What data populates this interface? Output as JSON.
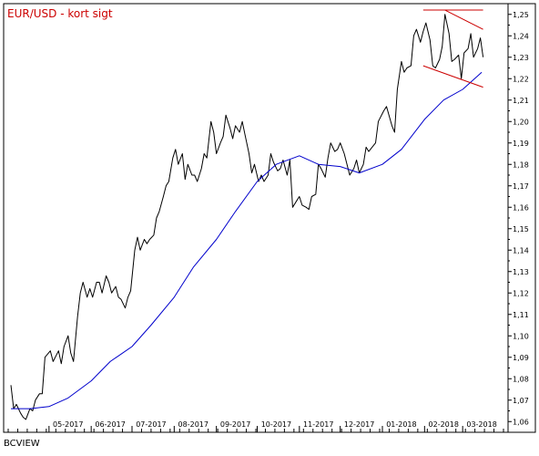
{
  "chart_data": {
    "type": "line",
    "title": "EUR/USD - kort sigt",
    "title_color": "#cc0000",
    "footer": "BCVIEW",
    "x_tick_labels": [
      "05-2017",
      "06-2017",
      "07-2017",
      "08-2017",
      "09-2017",
      "10-2017",
      "11-2017",
      "12-2017",
      "01-2018",
      "02-2018",
      "03-2018"
    ],
    "y_tick_labels": [
      "1,06",
      "1,07",
      "1,08",
      "1,09",
      "1,10",
      "1,11",
      "1,12",
      "1,13",
      "1,14",
      "1,15",
      "1,16",
      "1,17",
      "1,18",
      "1,19",
      "1,20",
      "1,21",
      "1,22",
      "1,23",
      "1,24",
      "1,25"
    ],
    "ylim": [
      1.055,
      1.255
    ],
    "xlim": [
      "2017-04-01",
      "2018-03-31"
    ],
    "grid": false,
    "legend": "none",
    "series": [
      {
        "color": "#000000",
        "points": [
          [
            "2017-04-03",
            1.077
          ],
          [
            "2017-04-05",
            1.066
          ],
          [
            "2017-04-07",
            1.068
          ],
          [
            "2017-04-10",
            1.064
          ],
          [
            "2017-04-12",
            1.062
          ],
          [
            "2017-04-14",
            1.061
          ],
          [
            "2017-04-17",
            1.066
          ],
          [
            "2017-04-19",
            1.065
          ],
          [
            "2017-04-21",
            1.07
          ],
          [
            "2017-04-24",
            1.073
          ],
          [
            "2017-04-26",
            1.073
          ],
          [
            "2017-04-28",
            1.09
          ],
          [
            "2017-05-02",
            1.093
          ],
          [
            "2017-05-04",
            1.088
          ],
          [
            "2017-05-08",
            1.093
          ],
          [
            "2017-05-10",
            1.087
          ],
          [
            "2017-05-12",
            1.095
          ],
          [
            "2017-05-15",
            1.1
          ],
          [
            "2017-05-17",
            1.092
          ],
          [
            "2017-05-19",
            1.088
          ],
          [
            "2017-05-22",
            1.109
          ],
          [
            "2017-05-24",
            1.12
          ],
          [
            "2017-05-26",
            1.125
          ],
          [
            "2017-05-29",
            1.118
          ],
          [
            "2017-05-31",
            1.122
          ],
          [
            "2017-06-02",
            1.118
          ],
          [
            "2017-06-05",
            1.125
          ],
          [
            "2017-06-07",
            1.125
          ],
          [
            "2017-06-09",
            1.12
          ],
          [
            "2017-06-12",
            1.128
          ],
          [
            "2017-06-14",
            1.125
          ],
          [
            "2017-06-16",
            1.12
          ],
          [
            "2017-06-19",
            1.123
          ],
          [
            "2017-06-21",
            1.118
          ],
          [
            "2017-06-23",
            1.117
          ],
          [
            "2017-06-26",
            1.113
          ],
          [
            "2017-06-28",
            1.118
          ],
          [
            "2017-06-30",
            1.121
          ],
          [
            "2017-07-03",
            1.14
          ],
          [
            "2017-07-05",
            1.146
          ],
          [
            "2017-07-07",
            1.14
          ],
          [
            "2017-07-10",
            1.145
          ],
          [
            "2017-07-12",
            1.143
          ],
          [
            "2017-07-14",
            1.145
          ],
          [
            "2017-07-17",
            1.147
          ],
          [
            "2017-07-19",
            1.155
          ],
          [
            "2017-07-21",
            1.158
          ],
          [
            "2017-07-24",
            1.165
          ],
          [
            "2017-07-26",
            1.17
          ],
          [
            "2017-07-28",
            1.172
          ],
          [
            "2017-07-31",
            1.183
          ],
          [
            "2017-08-02",
            1.187
          ],
          [
            "2017-08-04",
            1.18
          ],
          [
            "2017-08-07",
            1.185
          ],
          [
            "2017-08-09",
            1.173
          ],
          [
            "2017-08-11",
            1.18
          ],
          [
            "2017-08-14",
            1.175
          ],
          [
            "2017-08-16",
            1.175
          ],
          [
            "2017-08-18",
            1.172
          ],
          [
            "2017-08-21",
            1.178
          ],
          [
            "2017-08-23",
            1.185
          ],
          [
            "2017-08-25",
            1.183
          ],
          [
            "2017-08-28",
            1.2
          ],
          [
            "2017-08-30",
            1.195
          ],
          [
            "2017-09-01",
            1.185
          ],
          [
            "2017-09-04",
            1.19
          ],
          [
            "2017-09-06",
            1.193
          ],
          [
            "2017-09-08",
            1.203
          ],
          [
            "2017-09-11",
            1.197
          ],
          [
            "2017-09-13",
            1.192
          ],
          [
            "2017-09-15",
            1.198
          ],
          [
            "2017-09-18",
            1.195
          ],
          [
            "2017-09-20",
            1.2
          ],
          [
            "2017-09-22",
            1.194
          ],
          [
            "2017-09-25",
            1.185
          ],
          [
            "2017-09-27",
            1.176
          ],
          [
            "2017-09-29",
            1.18
          ],
          [
            "2017-10-02",
            1.172
          ],
          [
            "2017-10-04",
            1.175
          ],
          [
            "2017-10-06",
            1.172
          ],
          [
            "2017-10-09",
            1.175
          ],
          [
            "2017-10-11",
            1.185
          ],
          [
            "2017-10-13",
            1.181
          ],
          [
            "2017-10-16",
            1.177
          ],
          [
            "2017-10-18",
            1.178
          ],
          [
            "2017-10-20",
            1.182
          ],
          [
            "2017-10-23",
            1.175
          ],
          [
            "2017-10-25",
            1.182
          ],
          [
            "2017-10-27",
            1.16
          ],
          [
            "2017-10-30",
            1.163
          ],
          [
            "2017-11-01",
            1.165
          ],
          [
            "2017-11-03",
            1.161
          ],
          [
            "2017-11-06",
            1.16
          ],
          [
            "2017-11-08",
            1.159
          ],
          [
            "2017-11-10",
            1.165
          ],
          [
            "2017-11-13",
            1.166
          ],
          [
            "2017-11-15",
            1.18
          ],
          [
            "2017-11-17",
            1.178
          ],
          [
            "2017-11-20",
            1.174
          ],
          [
            "2017-11-22",
            1.183
          ],
          [
            "2017-11-24",
            1.19
          ],
          [
            "2017-11-27",
            1.186
          ],
          [
            "2017-11-29",
            1.187
          ],
          [
            "2017-12-01",
            1.19
          ],
          [
            "2017-12-04",
            1.185
          ],
          [
            "2017-12-06",
            1.18
          ],
          [
            "2017-12-08",
            1.175
          ],
          [
            "2017-12-11",
            1.178
          ],
          [
            "2017-12-13",
            1.182
          ],
          [
            "2017-12-15",
            1.176
          ],
          [
            "2017-12-18",
            1.18
          ],
          [
            "2017-12-20",
            1.188
          ],
          [
            "2017-12-22",
            1.186
          ],
          [
            "2017-12-27",
            1.19
          ],
          [
            "2017-12-29",
            1.2
          ],
          [
            "2018-01-02",
            1.205
          ],
          [
            "2018-01-04",
            1.207
          ],
          [
            "2018-01-08",
            1.198
          ],
          [
            "2018-01-10",
            1.195
          ],
          [
            "2018-01-12",
            1.215
          ],
          [
            "2018-01-15",
            1.228
          ],
          [
            "2018-01-17",
            1.223
          ],
          [
            "2018-01-19",
            1.225
          ],
          [
            "2018-01-22",
            1.226
          ],
          [
            "2018-01-24",
            1.24
          ],
          [
            "2018-01-26",
            1.243
          ],
          [
            "2018-01-29",
            1.237
          ],
          [
            "2018-01-31",
            1.242
          ],
          [
            "2018-02-02",
            1.246
          ],
          [
            "2018-02-05",
            1.238
          ],
          [
            "2018-02-07",
            1.226
          ],
          [
            "2018-02-09",
            1.225
          ],
          [
            "2018-02-12",
            1.229
          ],
          [
            "2018-02-14",
            1.235
          ],
          [
            "2018-02-16",
            1.25
          ],
          [
            "2018-02-19",
            1.241
          ],
          [
            "2018-02-21",
            1.228
          ],
          [
            "2018-02-23",
            1.229
          ],
          [
            "2018-02-26",
            1.231
          ],
          [
            "2018-02-28",
            1.22
          ],
          [
            "2018-03-02",
            1.232
          ],
          [
            "2018-03-05",
            1.234
          ],
          [
            "2018-03-07",
            1.241
          ],
          [
            "2018-03-09",
            1.23
          ],
          [
            "2018-03-12",
            1.234
          ],
          [
            "2018-03-14",
            1.239
          ],
          [
            "2018-03-16",
            1.23
          ]
        ]
      },
      {
        "color": "#0000cc",
        "points": [
          [
            "2017-04-03",
            1.066
          ],
          [
            "2017-04-17",
            1.066
          ],
          [
            "2017-05-01",
            1.067
          ],
          [
            "2017-05-15",
            1.071
          ],
          [
            "2017-06-01",
            1.079
          ],
          [
            "2017-06-15",
            1.088
          ],
          [
            "2017-07-01",
            1.095
          ],
          [
            "2017-07-15",
            1.105
          ],
          [
            "2017-08-01",
            1.118
          ],
          [
            "2017-08-15",
            1.132
          ],
          [
            "2017-09-01",
            1.145
          ],
          [
            "2017-09-15",
            1.158
          ],
          [
            "2017-10-01",
            1.172
          ],
          [
            "2017-10-15",
            1.18
          ],
          [
            "2017-11-01",
            1.184
          ],
          [
            "2017-11-15",
            1.18
          ],
          [
            "2017-12-01",
            1.179
          ],
          [
            "2017-12-15",
            1.176
          ],
          [
            "2018-01-01",
            1.18
          ],
          [
            "2018-01-15",
            1.187
          ],
          [
            "2018-02-01",
            1.201
          ],
          [
            "2018-02-15",
            1.21
          ],
          [
            "2018-03-01",
            1.215
          ],
          [
            "2018-03-15",
            1.223
          ]
        ]
      }
    ],
    "trendlines": [
      {
        "color": "#cc0000",
        "from": [
          "2018-01-31",
          1.252
        ],
        "to": [
          "2018-03-16",
          1.252
        ]
      },
      {
        "color": "#cc0000",
        "from": [
          "2018-02-16",
          1.252
        ],
        "to": [
          "2018-03-16",
          1.243
        ]
      },
      {
        "color": "#cc0000",
        "from": [
          "2018-01-31",
          1.226
        ],
        "to": [
          "2018-03-16",
          1.216
        ]
      }
    ]
  }
}
